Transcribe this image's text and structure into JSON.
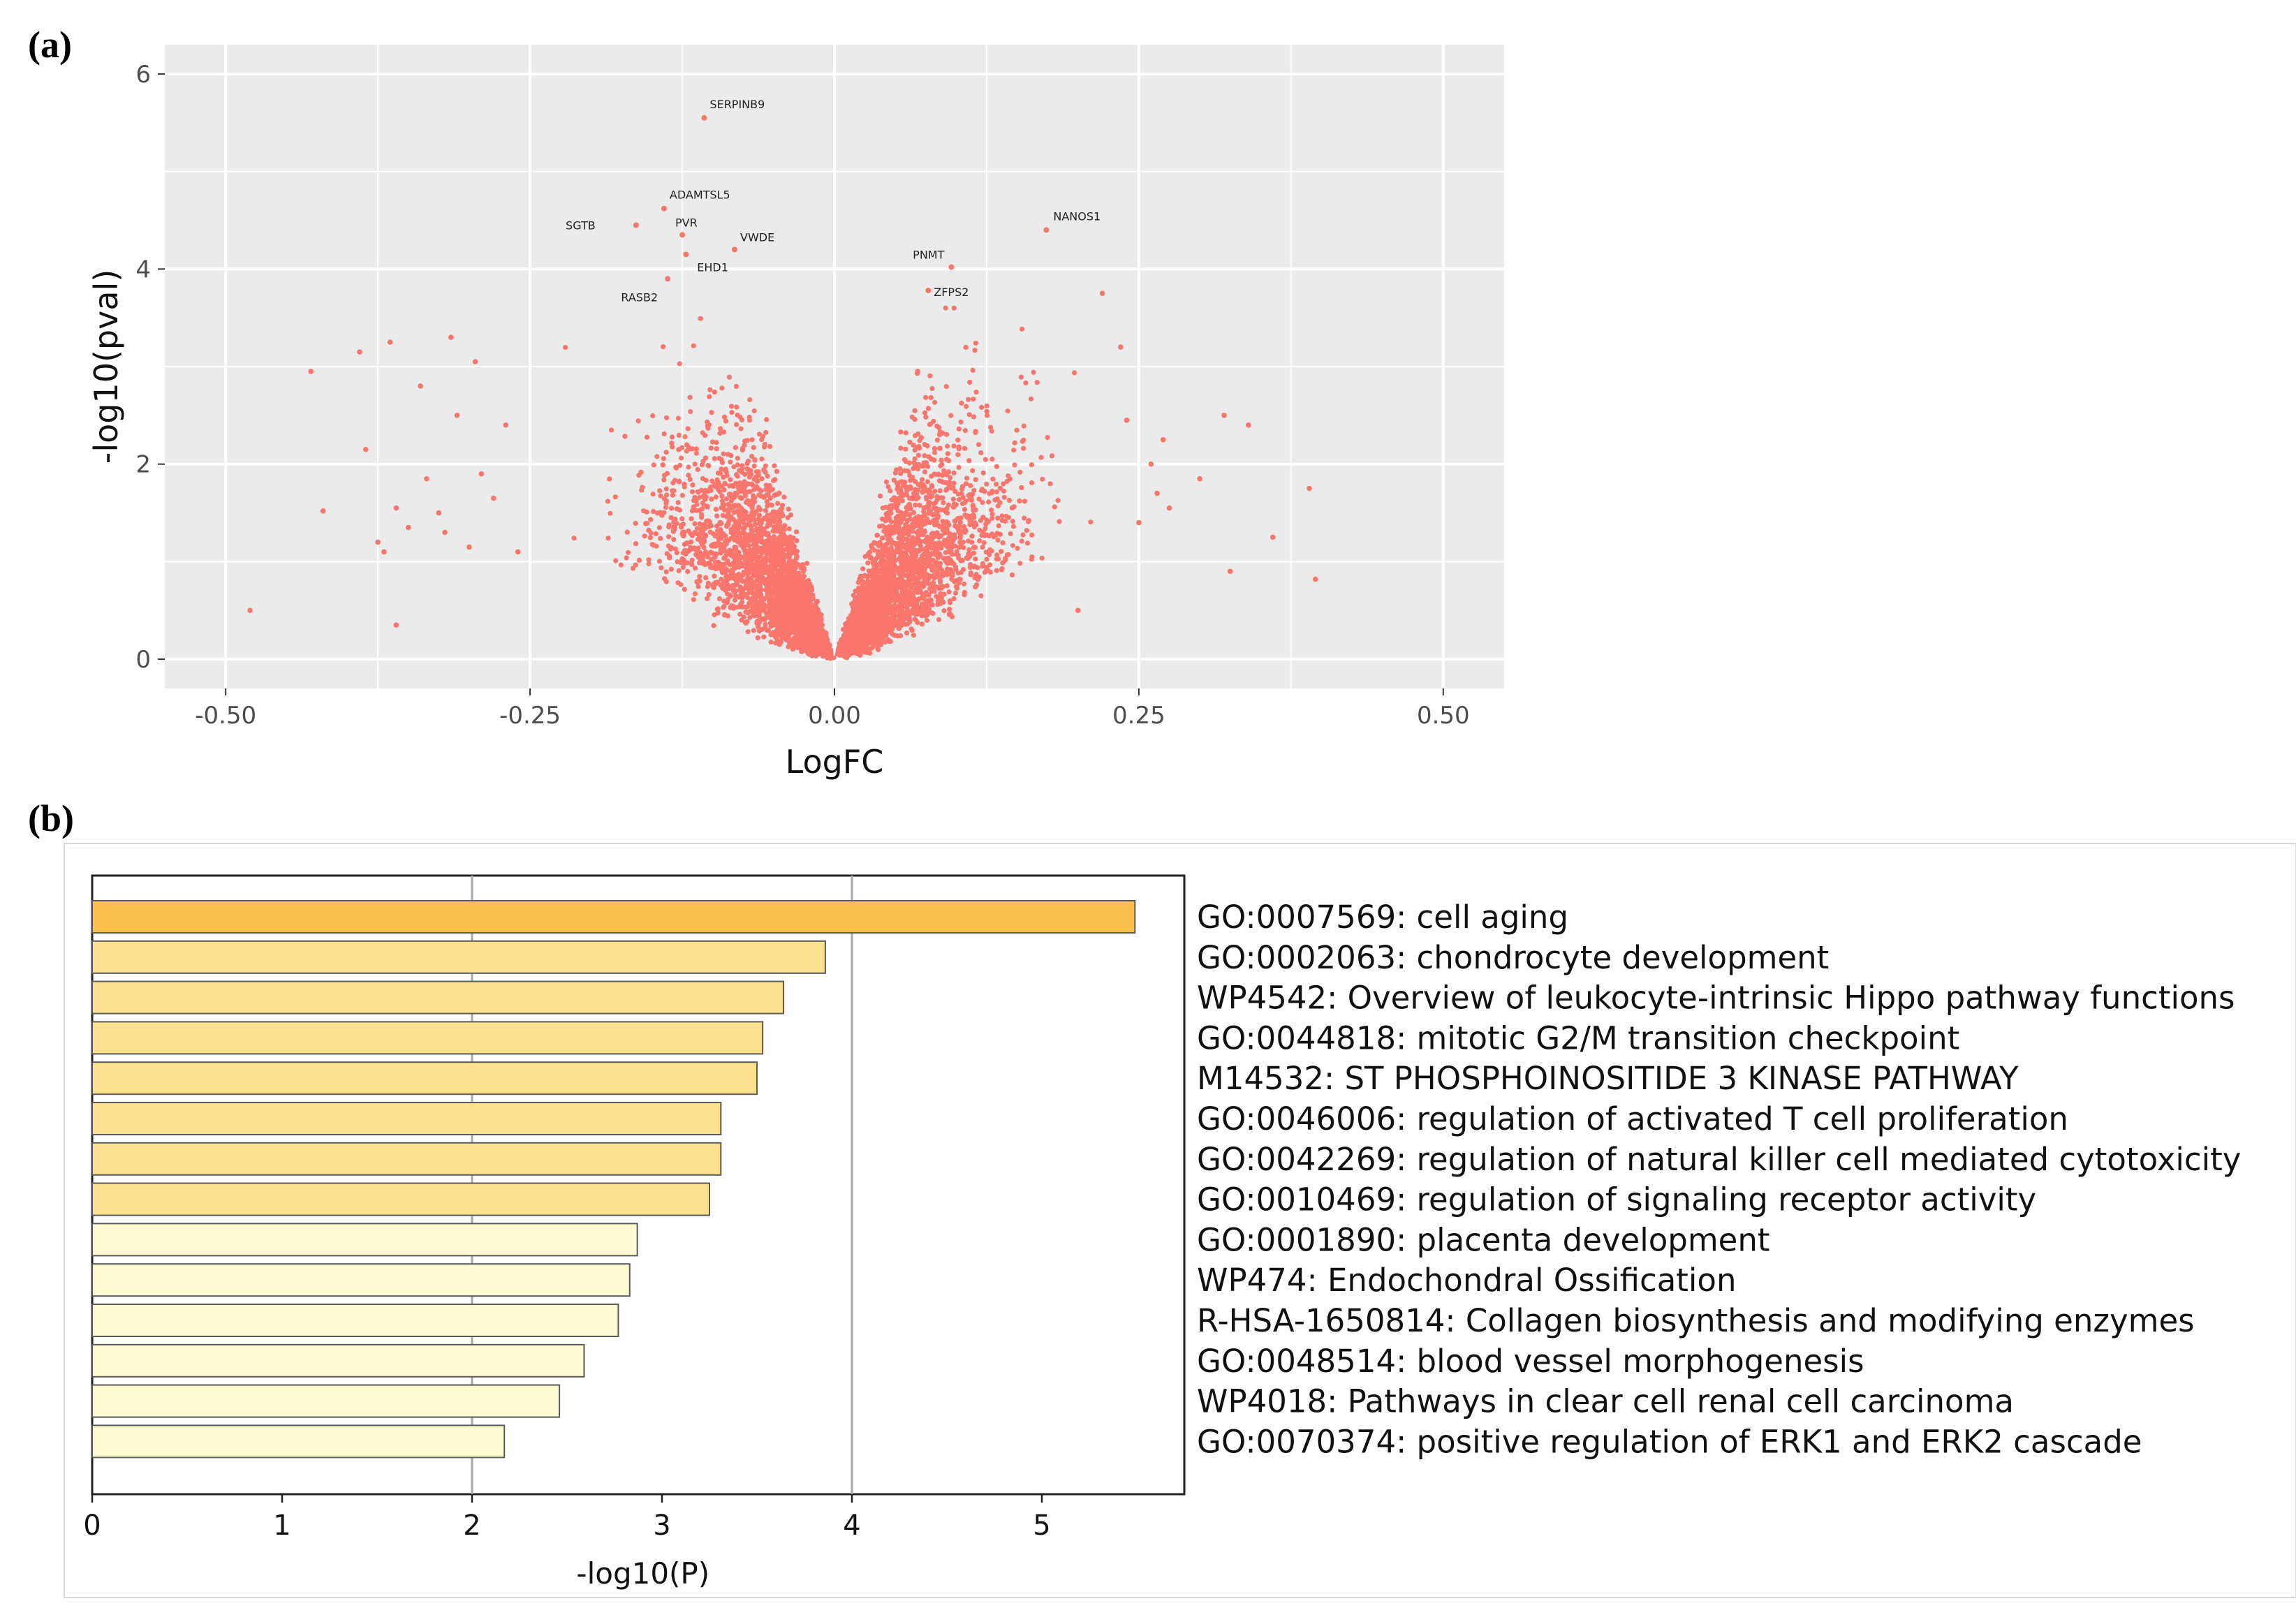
{
  "figure": {
    "panel_a_label": "(a)",
    "panel_b_label": "(b)"
  },
  "colors": {
    "point": "#f8766d",
    "panel_bg": "#ebebeb",
    "grid": "#ffffff",
    "bar_high": "#fbc14a",
    "bar_mid": "#fde18e",
    "bar_low": "#fefbd3",
    "bar_stroke": "#5a5a5a"
  },
  "chart_data": [
    {
      "type": "scatter",
      "title": "",
      "xlabel": "LogFC",
      "ylabel": "-log10(pval)",
      "xlim": [
        -0.55,
        0.55
      ],
      "ylim": [
        -0.3,
        6.3
      ],
      "x_ticks": [
        -0.5,
        -0.25,
        0.0,
        0.25,
        0.5
      ],
      "x_tick_labels": [
        "-0.50",
        "-0.25",
        "0.00",
        "0.25",
        "0.50"
      ],
      "y_ticks": [
        0,
        2,
        4,
        6
      ],
      "y_tick_labels": [
        "0",
        "2",
        "4",
        "6"
      ],
      "grid": true,
      "labeled_points": [
        {
          "label": "SERPINB9",
          "x": -0.107,
          "y": 5.55
        },
        {
          "label": "ADAMTSL5",
          "x": -0.14,
          "y": 4.62
        },
        {
          "label": "PVR",
          "x": -0.125,
          "y": 4.35
        },
        {
          "label": "SGTB",
          "x": -0.163,
          "y": 4.45
        },
        {
          "label": "VWDE",
          "x": -0.082,
          "y": 4.2
        },
        {
          "label": "EHD1",
          "x": -0.122,
          "y": 4.15
        },
        {
          "label": "RASB2",
          "x": -0.137,
          "y": 3.9
        },
        {
          "label": "NANOS1",
          "x": 0.174,
          "y": 4.4
        },
        {
          "label": "PNMT",
          "x": 0.096,
          "y": 4.02
        },
        {
          "label": "ZFPS2",
          "x": 0.077,
          "y": 3.78
        }
      ],
      "outlier_points": [
        {
          "x": -0.48,
          "y": 0.5
        },
        {
          "x": -0.43,
          "y": 2.95
        },
        {
          "x": -0.42,
          "y": 1.52
        },
        {
          "x": -0.39,
          "y": 3.15
        },
        {
          "x": -0.385,
          "y": 2.15
        },
        {
          "x": -0.375,
          "y": 1.2
        },
        {
          "x": -0.37,
          "y": 1.1
        },
        {
          "x": -0.365,
          "y": 3.25
        },
        {
          "x": -0.36,
          "y": 0.35
        },
        {
          "x": -0.36,
          "y": 1.55
        },
        {
          "x": -0.35,
          "y": 1.35
        },
        {
          "x": -0.34,
          "y": 2.8
        },
        {
          "x": -0.335,
          "y": 1.85
        },
        {
          "x": -0.325,
          "y": 1.5
        },
        {
          "x": -0.32,
          "y": 1.3
        },
        {
          "x": -0.315,
          "y": 3.3
        },
        {
          "x": -0.31,
          "y": 2.5
        },
        {
          "x": -0.3,
          "y": 1.15
        },
        {
          "x": -0.295,
          "y": 3.05
        },
        {
          "x": -0.29,
          "y": 1.9
        },
        {
          "x": -0.28,
          "y": 1.65
        },
        {
          "x": -0.27,
          "y": 2.4
        },
        {
          "x": -0.26,
          "y": 1.1
        },
        {
          "x": 0.2,
          "y": 0.5
        },
        {
          "x": 0.22,
          "y": 3.75
        },
        {
          "x": 0.235,
          "y": 3.2
        },
        {
          "x": 0.24,
          "y": 2.45
        },
        {
          "x": 0.25,
          "y": 1.4
        },
        {
          "x": 0.26,
          "y": 2.0
        },
        {
          "x": 0.265,
          "y": 1.7
        },
        {
          "x": 0.27,
          "y": 2.25
        },
        {
          "x": 0.275,
          "y": 1.55
        },
        {
          "x": 0.3,
          "y": 1.85
        },
        {
          "x": 0.32,
          "y": 2.5
        },
        {
          "x": 0.325,
          "y": 0.9
        },
        {
          "x": 0.34,
          "y": 2.4
        },
        {
          "x": 0.36,
          "y": 1.25
        },
        {
          "x": 0.39,
          "y": 1.75
        },
        {
          "x": 0.395,
          "y": 0.82
        }
      ],
      "cloud_points": 5500
    },
    {
      "type": "bar",
      "orientation": "horizontal",
      "title": "",
      "xlabel": "-log10(P)",
      "ylabel": "",
      "xlim": [
        0,
        5.75
      ],
      "x_ticks": [
        0,
        1,
        2,
        3,
        4,
        5
      ],
      "x_tick_labels": [
        "0",
        "1",
        "2",
        "3",
        "4",
        "5"
      ],
      "grid": true,
      "categories": [
        "GO:0007569: cell aging",
        "GO:0002063: chondrocyte development",
        "WP4542: Overview of leukocyte-intrinsic Hippo pathway functions",
        "GO:0044818: mitotic G2/M transition checkpoint",
        "M14532: ST PHOSPHOINOSITIDE 3 KINASE PATHWAY",
        "GO:0046006: regulation of activated T cell proliferation",
        "GO:0042269: regulation of natural killer cell mediated cytotoxicity",
        "GO:0010469: regulation of signaling receptor activity",
        "GO:0001890: placenta development",
        "WP474: Endochondral Ossification",
        "R-HSA-1650814: Collagen biosynthesis and modifying enzymes",
        "GO:0048514: blood vessel morphogenesis",
        "WP4018: Pathways in clear cell renal cell carcinoma",
        "GO:0070374: positive regulation of ERK1 and ERK2 cascade"
      ],
      "values": [
        5.49,
        3.86,
        3.64,
        3.53,
        3.5,
        3.31,
        3.31,
        3.25,
        2.87,
        2.83,
        2.77,
        2.59,
        2.46,
        2.17
      ],
      "color_levels": [
        "high",
        "mid",
        "mid",
        "mid",
        "mid",
        "mid",
        "mid",
        "mid",
        "low",
        "low",
        "low",
        "low",
        "low",
        "low"
      ]
    }
  ]
}
